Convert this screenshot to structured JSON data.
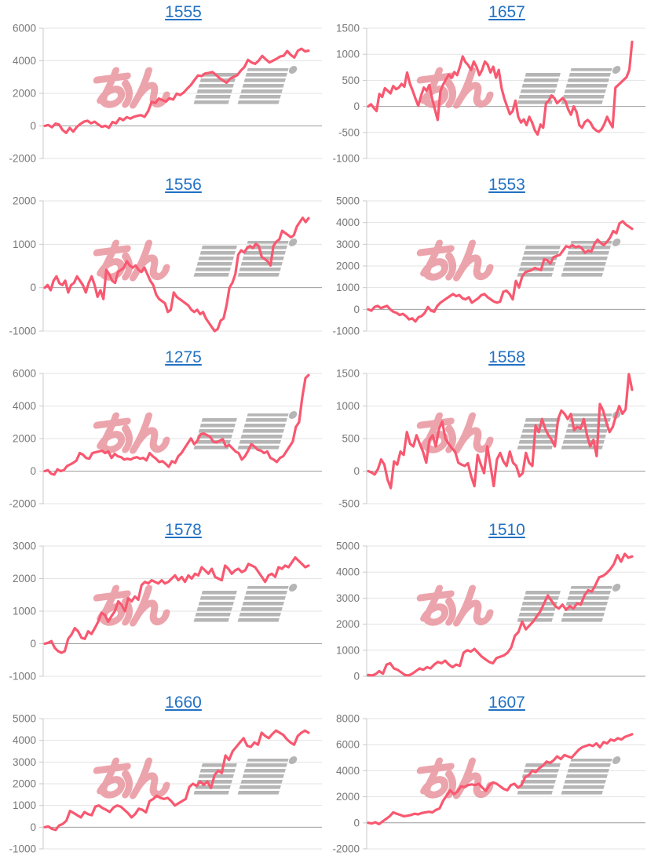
{
  "page": {
    "layout": "2x5 grid of machine-number daily slump graphs",
    "columns": 2,
    "rows": 5
  },
  "colors": {
    "background": "#ffffff",
    "line": "#f85870",
    "title_link": "#2271c3",
    "grid": "#e3e3e3",
    "zero_line": "#9b9b9b",
    "axis_line": "#c9c9c9",
    "tick_mark": "#c9c9c9",
    "tick_label": "#777777",
    "watermark_pink": "#e9959e",
    "watermark_gray": "#a9a9a9"
  },
  "watermark": {
    "pink_text": "みん",
    "gray_text": "レポ"
  },
  "chart_data": [
    {
      "type": "line",
      "title": "1555",
      "ylim": [
        -2000,
        6000
      ],
      "yticks": [
        6000,
        4000,
        2000,
        0,
        -2000
      ],
      "values": [
        0,
        60,
        -80,
        140,
        80,
        -250,
        -430,
        -120,
        -350,
        -60,
        120,
        260,
        320,
        160,
        260,
        90,
        -60,
        10,
        -120,
        240,
        160,
        470,
        350,
        540,
        450,
        560,
        620,
        660,
        560,
        900,
        1480,
        1400,
        1680,
        1580,
        1500,
        1700,
        1620,
        1980,
        1900,
        2060,
        2300,
        2520,
        2820,
        3100,
        3060,
        3220,
        3260,
        3310,
        3140,
        2940,
        2790,
        2650,
        2900,
        3010,
        3120,
        3400,
        3620,
        4060,
        3900,
        3810,
        4010,
        4300,
        4090,
        3900,
        4010,
        4120,
        4260,
        4310,
        4600,
        4360,
        4200,
        4620,
        4740,
        4580,
        4620
      ]
    },
    {
      "type": "line",
      "title": "1657",
      "ylim": [
        -1000,
        1500
      ],
      "yticks": [
        1500,
        1000,
        500,
        0,
        -500,
        -1000
      ],
      "values": [
        0,
        40,
        -30,
        -90,
        240,
        180,
        350,
        300,
        250,
        390,
        330,
        360,
        430,
        380,
        650,
        430,
        300,
        150,
        10,
        200,
        360,
        300,
        410,
        150,
        -60,
        -260,
        300,
        420,
        520,
        610,
        550,
        660,
        600,
        760,
        960,
        850,
        790,
        700,
        860,
        760,
        600,
        700,
        860,
        800,
        650,
        760,
        550,
        700,
        350,
        150,
        0,
        -150,
        -90,
        110,
        -200,
        -310,
        -250,
        -360,
        -200,
        -310,
        -460,
        -540,
        -350,
        -410,
        60,
        110,
        210,
        160,
        60,
        110,
        160,
        100,
        -60,
        -160,
        0,
        -110,
        -360,
        -410,
        -300,
        -260,
        -310,
        -410,
        -460,
        -490,
        -440,
        -340,
        -200,
        -310,
        -400,
        360,
        410,
        460,
        510,
        560,
        700,
        1240
      ]
    },
    {
      "type": "line",
      "title": "1556",
      "ylim": [
        -1000,
        2000
      ],
      "yticks": [
        2000,
        1000,
        0,
        -1000
      ],
      "values": [
        0,
        60,
        -60,
        160,
        260,
        100,
        60,
        160,
        -110,
        60,
        110,
        260,
        160,
        60,
        -110,
        110,
        260,
        60,
        -210,
        -60,
        -260,
        410,
        310,
        160,
        110,
        360,
        410,
        460,
        610,
        510,
        460,
        510,
        410,
        360,
        460,
        310,
        160,
        60,
        -160,
        -260,
        -310,
        -360,
        -560,
        -510,
        -110,
        -210,
        -260,
        -310,
        -360,
        -410,
        -510,
        -560,
        -510,
        -610,
        -560,
        -710,
        -810,
        -910,
        -1000,
        -950,
        -760,
        -710,
        -410,
        0,
        110,
        310,
        760,
        860,
        810,
        910,
        960,
        910,
        1010,
        960,
        710,
        660,
        610,
        510,
        960,
        1060,
        1110,
        1310,
        1260,
        1210,
        1160,
        1210,
        1410,
        1510,
        1610,
        1510,
        1600
      ]
    },
    {
      "type": "line",
      "title": "1553",
      "ylim": [
        -1000,
        5000
      ],
      "yticks": [
        5000,
        4000,
        3000,
        2000,
        1000,
        0,
        -1000
      ],
      "values": [
        0,
        -60,
        110,
        160,
        60,
        110,
        160,
        0,
        -110,
        -160,
        -260,
        -210,
        -310,
        -460,
        -410,
        -560,
        -360,
        -310,
        -160,
        110,
        -60,
        -110,
        160,
        310,
        410,
        510,
        610,
        710,
        610,
        660,
        510,
        460,
        560,
        310,
        410,
        510,
        660,
        710,
        560,
        460,
        360,
        310,
        360,
        810,
        860,
        710,
        460,
        1310,
        1010,
        1510,
        1710,
        1760,
        1810,
        1910,
        1860,
        1810,
        2310,
        2260,
        2110,
        2410,
        2460,
        2510,
        2710,
        2910,
        2860,
        2960,
        2860,
        2910,
        2810,
        2610,
        2710,
        2660,
        3010,
        3210,
        3060,
        2960,
        3110,
        3310,
        3610,
        3510,
        3960,
        4060,
        3910,
        3810,
        3710
      ]
    },
    {
      "type": "line",
      "title": "1275",
      "ylim": [
        -2000,
        6000
      ],
      "yticks": [
        6000,
        4000,
        2000,
        0,
        -2000
      ],
      "values": [
        0,
        60,
        -160,
        -210,
        110,
        0,
        60,
        310,
        410,
        510,
        660,
        1110,
        1010,
        810,
        760,
        1110,
        1160,
        1210,
        1260,
        1110,
        1210,
        810,
        1060,
        910,
        860,
        710,
        760,
        710,
        810,
        860,
        760,
        810,
        660,
        1110,
        910,
        760,
        560,
        610,
        460,
        260,
        610,
        510,
        910,
        1110,
        1410,
        1710,
        2010,
        1660,
        1860,
        2260,
        2310,
        2210,
        2110,
        1810,
        1760,
        1860,
        1960,
        1510,
        1610,
        1410,
        1210,
        1110,
        710,
        910,
        1260,
        1660,
        1510,
        1310,
        1260,
        1110,
        1210,
        810,
        710,
        560,
        810,
        910,
        1210,
        1510,
        1810,
        2710,
        3010,
        4510,
        5710,
        5900
      ]
    },
    {
      "type": "line",
      "title": "1558",
      "ylim": [
        -500,
        1500
      ],
      "yticks": [
        1500,
        1000,
        500,
        0,
        -500
      ],
      "values": [
        0,
        -20,
        -50,
        30,
        180,
        100,
        -130,
        -260,
        150,
        100,
        300,
        250,
        600,
        420,
        380,
        550,
        420,
        300,
        130,
        480,
        550,
        380,
        650,
        760,
        500,
        420,
        350,
        300,
        130,
        100,
        80,
        120,
        -80,
        -230,
        250,
        100,
        -30,
        380,
        80,
        -230,
        180,
        280,
        150,
        80,
        300,
        130,
        80,
        -80,
        -30,
        280,
        130,
        80,
        700,
        600,
        800,
        650,
        550,
        480,
        380,
        800,
        930,
        880,
        800,
        880,
        630,
        680,
        650,
        800,
        550,
        380,
        480,
        230,
        1030,
        930,
        750,
        600,
        680,
        850,
        1000,
        880,
        950,
        1490,
        1250
      ]
    },
    {
      "type": "line",
      "title": "1578",
      "ylim": [
        -1000,
        3000
      ],
      "yticks": [
        3000,
        2000,
        1000,
        0,
        -1000
      ],
      "values": [
        0,
        30,
        80,
        -130,
        -230,
        -280,
        -230,
        150,
        280,
        480,
        380,
        180,
        150,
        380,
        300,
        480,
        680,
        950,
        880,
        680,
        850,
        1000,
        1300,
        1200,
        1000,
        1400,
        1300,
        1450,
        1350,
        1800,
        1900,
        1850,
        1950,
        1900,
        1850,
        1950,
        1850,
        1900,
        2000,
        2100,
        1950,
        2050,
        1900,
        2100,
        2000,
        2150,
        2100,
        2350,
        2250,
        2150,
        2300,
        2050,
        2000,
        1950,
        2400,
        2300,
        2150,
        2250,
        2300,
        2200,
        2250,
        2450,
        2400,
        2350,
        2200,
        2050,
        1900,
        2100,
        2150,
        2050,
        2350,
        2300,
        2400,
        2350,
        2500,
        2650,
        2550,
        2450,
        2350,
        2400
      ]
    },
    {
      "type": "line",
      "title": "1510",
      "ylim": [
        0,
        5000
      ],
      "yticks": [
        5000,
        4000,
        3000,
        2000,
        1000,
        0
      ],
      "values": [
        50,
        30,
        80,
        200,
        100,
        450,
        500,
        300,
        250,
        150,
        50,
        30,
        100,
        200,
        300,
        250,
        350,
        300,
        450,
        550,
        500,
        600,
        450,
        350,
        450,
        400,
        900,
        1000,
        950,
        1050,
        900,
        750,
        650,
        550,
        500,
        700,
        750,
        800,
        900,
        1100,
        1550,
        1700,
        2100,
        1800,
        1950,
        2100,
        2300,
        2500,
        2800,
        3100,
        2900,
        2700,
        2600,
        2750,
        2550,
        2700,
        2600,
        2800,
        2750,
        3100,
        3300,
        3250,
        3500,
        3800,
        3850,
        3950,
        4100,
        4300,
        4650,
        4400,
        4700,
        4550,
        4600
      ]
    },
    {
      "type": "line",
      "title": "1660",
      "ylim": [
        -1000,
        5000
      ],
      "yticks": [
        5000,
        4000,
        3000,
        2000,
        1000,
        0,
        -1000
      ],
      "values": [
        0,
        30,
        -80,
        -130,
        80,
        150,
        300,
        750,
        650,
        550,
        450,
        700,
        600,
        550,
        950,
        1000,
        880,
        800,
        700,
        900,
        1000,
        950,
        800,
        650,
        450,
        600,
        850,
        800,
        680,
        1200,
        1300,
        1450,
        1350,
        1300,
        1350,
        1200,
        1000,
        1100,
        1200,
        1300,
        1850,
        2000,
        1900,
        2100,
        1950,
        2100,
        1800,
        2400,
        2600,
        2500,
        3300,
        3100,
        3500,
        3700,
        3900,
        4100,
        3750,
        3700,
        3900,
        3800,
        4350,
        4200,
        4100,
        4300,
        4450,
        4350,
        4250,
        4050,
        3900,
        3800,
        4200,
        4350,
        4450,
        4350
      ]
    },
    {
      "type": "line",
      "title": "1607",
      "ylim": [
        -2000,
        8000
      ],
      "yticks": [
        8000,
        6000,
        4000,
        2000,
        0,
        -2000
      ],
      "values": [
        0,
        -50,
        50,
        -100,
        100,
        300,
        500,
        800,
        700,
        600,
        500,
        550,
        600,
        700,
        650,
        750,
        800,
        850,
        800,
        1000,
        1100,
        1700,
        2100,
        2500,
        2200,
        2400,
        2800,
        2750,
        2900,
        2950,
        2900,
        3000,
        2700,
        2450,
        2900,
        3100,
        3000,
        2800,
        2600,
        2500,
        2900,
        3000,
        2700,
        2900,
        3500,
        3650,
        4000,
        3900,
        4200,
        4400,
        4700,
        4600,
        4800,
        5100,
        4900,
        5200,
        5100,
        5000,
        5300,
        5600,
        5800,
        5900,
        6000,
        5900,
        6100,
        5800,
        6200,
        6100,
        6400,
        6300,
        6500,
        6400,
        6600,
        6700,
        6800
      ]
    }
  ]
}
